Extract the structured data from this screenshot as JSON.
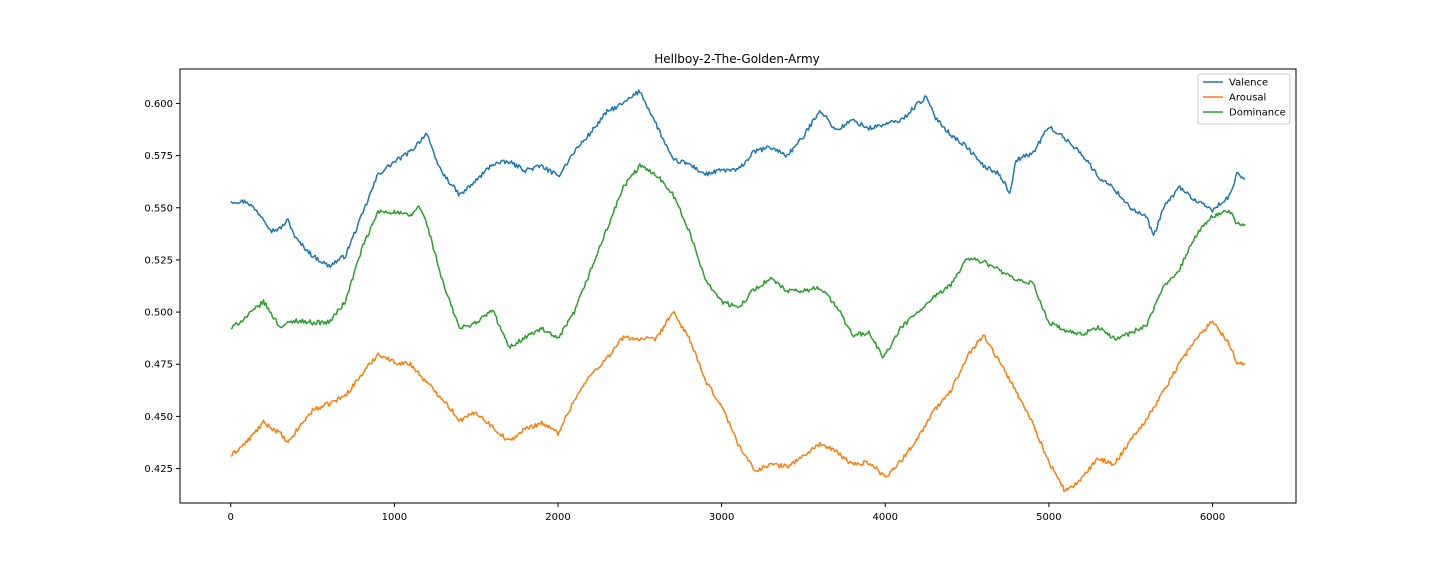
{
  "chart_data": {
    "type": "line",
    "title": "Hellboy-2-The-Golden-Army",
    "xlabel": "",
    "ylabel": "",
    "xlim": [
      -310,
      6510
    ],
    "ylim": [
      0.4085,
      0.6165
    ],
    "x_ticks": [
      0,
      1000,
      2000,
      3000,
      4000,
      5000,
      6000
    ],
    "x_tick_labels": [
      "0",
      "1000",
      "2000",
      "3000",
      "4000",
      "5000",
      "6000"
    ],
    "y_ticks": [
      0.425,
      0.45,
      0.475,
      0.5,
      0.525,
      0.55,
      0.575,
      0.6
    ],
    "y_tick_labels": [
      "0.425",
      "0.450",
      "0.475",
      "0.500",
      "0.525",
      "0.550",
      "0.575",
      "0.600"
    ],
    "grid": false,
    "legend_position": "top-right",
    "series": [
      {
        "name": "Valence",
        "color": "#1f77b4",
        "points": [
          [
            0,
            0.553
          ],
          [
            100,
            0.553
          ],
          [
            200,
            0.545
          ],
          [
            250,
            0.539
          ],
          [
            300,
            0.54
          ],
          [
            350,
            0.544
          ],
          [
            400,
            0.535
          ],
          [
            500,
            0.527
          ],
          [
            600,
            0.522
          ],
          [
            700,
            0.527
          ],
          [
            800,
            0.546
          ],
          [
            900,
            0.566
          ],
          [
            1000,
            0.572
          ],
          [
            1100,
            0.577
          ],
          [
            1200,
            0.586
          ],
          [
            1250,
            0.573
          ],
          [
            1300,
            0.566
          ],
          [
            1400,
            0.556
          ],
          [
            1500,
            0.563
          ],
          [
            1600,
            0.571
          ],
          [
            1700,
            0.572
          ],
          [
            1800,
            0.568
          ],
          [
            1900,
            0.57
          ],
          [
            2000,
            0.565
          ],
          [
            2100,
            0.577
          ],
          [
            2200,
            0.586
          ],
          [
            2300,
            0.596
          ],
          [
            2400,
            0.6
          ],
          [
            2500,
            0.606
          ],
          [
            2600,
            0.59
          ],
          [
            2700,
            0.573
          ],
          [
            2800,
            0.571
          ],
          [
            2900,
            0.566
          ],
          [
            3000,
            0.568
          ],
          [
            3100,
            0.568
          ],
          [
            3200,
            0.577
          ],
          [
            3300,
            0.579
          ],
          [
            3400,
            0.575
          ],
          [
            3500,
            0.584
          ],
          [
            3600,
            0.597
          ],
          [
            3700,
            0.587
          ],
          [
            3800,
            0.592
          ],
          [
            3900,
            0.588
          ],
          [
            4000,
            0.59
          ],
          [
            4100,
            0.592
          ],
          [
            4200,
            0.6
          ],
          [
            4250,
            0.603
          ],
          [
            4300,
            0.594
          ],
          [
            4400,
            0.585
          ],
          [
            4500,
            0.579
          ],
          [
            4600,
            0.57
          ],
          [
            4700,
            0.566
          ],
          [
            4760,
            0.557
          ],
          [
            4800,
            0.573
          ],
          [
            4900,
            0.576
          ],
          [
            5000,
            0.589
          ],
          [
            5100,
            0.583
          ],
          [
            5200,
            0.576
          ],
          [
            5300,
            0.565
          ],
          [
            5400,
            0.559
          ],
          [
            5500,
            0.55
          ],
          [
            5600,
            0.545
          ],
          [
            5640,
            0.536
          ],
          [
            5700,
            0.55
          ],
          [
            5800,
            0.56
          ],
          [
            5900,
            0.553
          ],
          [
            6000,
            0.549
          ],
          [
            6100,
            0.555
          ],
          [
            6150,
            0.566
          ],
          [
            6200,
            0.564
          ]
        ]
      },
      {
        "name": "Arousal",
        "color": "#ff7f0e",
        "points": [
          [
            0,
            0.431
          ],
          [
            100,
            0.438
          ],
          [
            200,
            0.447
          ],
          [
            300,
            0.442
          ],
          [
            350,
            0.437
          ],
          [
            400,
            0.443
          ],
          [
            500,
            0.453
          ],
          [
            600,
            0.456
          ],
          [
            700,
            0.46
          ],
          [
            800,
            0.47
          ],
          [
            900,
            0.48
          ],
          [
            1000,
            0.476
          ],
          [
            1100,
            0.475
          ],
          [
            1200,
            0.466
          ],
          [
            1300,
            0.458
          ],
          [
            1400,
            0.448
          ],
          [
            1500,
            0.452
          ],
          [
            1600,
            0.445
          ],
          [
            1700,
            0.438
          ],
          [
            1800,
            0.444
          ],
          [
            1900,
            0.447
          ],
          [
            2000,
            0.442
          ],
          [
            2100,
            0.458
          ],
          [
            2200,
            0.47
          ],
          [
            2300,
            0.478
          ],
          [
            2400,
            0.488
          ],
          [
            2500,
            0.487
          ],
          [
            2600,
            0.487
          ],
          [
            2700,
            0.5
          ],
          [
            2800,
            0.488
          ],
          [
            2900,
            0.467
          ],
          [
            3000,
            0.455
          ],
          [
            3100,
            0.437
          ],
          [
            3200,
            0.424
          ],
          [
            3300,
            0.427
          ],
          [
            3400,
            0.426
          ],
          [
            3500,
            0.431
          ],
          [
            3600,
            0.437
          ],
          [
            3700,
            0.433
          ],
          [
            3800,
            0.427
          ],
          [
            3900,
            0.428
          ],
          [
            4000,
            0.421
          ],
          [
            4100,
            0.429
          ],
          [
            4200,
            0.44
          ],
          [
            4300,
            0.453
          ],
          [
            4400,
            0.462
          ],
          [
            4500,
            0.479
          ],
          [
            4600,
            0.489
          ],
          [
            4700,
            0.476
          ],
          [
            4800,
            0.462
          ],
          [
            4900,
            0.447
          ],
          [
            5000,
            0.428
          ],
          [
            5100,
            0.414
          ],
          [
            5200,
            0.42
          ],
          [
            5300,
            0.43
          ],
          [
            5400,
            0.427
          ],
          [
            5500,
            0.439
          ],
          [
            5600,
            0.449
          ],
          [
            5700,
            0.462
          ],
          [
            5800,
            0.476
          ],
          [
            5900,
            0.487
          ],
          [
            6000,
            0.496
          ],
          [
            6100,
            0.485
          ],
          [
            6150,
            0.476
          ],
          [
            6200,
            0.475
          ]
        ]
      },
      {
        "name": "Dominance",
        "color": "#2ca02c",
        "points": [
          [
            0,
            0.492
          ],
          [
            100,
            0.498
          ],
          [
            200,
            0.505
          ],
          [
            300,
            0.493
          ],
          [
            400,
            0.496
          ],
          [
            500,
            0.495
          ],
          [
            600,
            0.495
          ],
          [
            700,
            0.505
          ],
          [
            800,
            0.53
          ],
          [
            900,
            0.548
          ],
          [
            1000,
            0.548
          ],
          [
            1100,
            0.546
          ],
          [
            1150,
            0.551
          ],
          [
            1200,
            0.542
          ],
          [
            1300,
            0.513
          ],
          [
            1400,
            0.492
          ],
          [
            1500,
            0.495
          ],
          [
            1600,
            0.501
          ],
          [
            1700,
            0.483
          ],
          [
            1800,
            0.488
          ],
          [
            1900,
            0.492
          ],
          [
            2000,
            0.487
          ],
          [
            2100,
            0.5
          ],
          [
            2200,
            0.52
          ],
          [
            2300,
            0.54
          ],
          [
            2400,
            0.56
          ],
          [
            2500,
            0.57
          ],
          [
            2600,
            0.566
          ],
          [
            2700,
            0.557
          ],
          [
            2800,
            0.539
          ],
          [
            2900,
            0.516
          ],
          [
            3000,
            0.505
          ],
          [
            3100,
            0.502
          ],
          [
            3200,
            0.511
          ],
          [
            3300,
            0.516
          ],
          [
            3400,
            0.51
          ],
          [
            3500,
            0.51
          ],
          [
            3600,
            0.512
          ],
          [
            3700,
            0.503
          ],
          [
            3800,
            0.489
          ],
          [
            3900,
            0.49
          ],
          [
            3990,
            0.478
          ],
          [
            4100,
            0.493
          ],
          [
            4200,
            0.5
          ],
          [
            4300,
            0.507
          ],
          [
            4400,
            0.513
          ],
          [
            4500,
            0.526
          ],
          [
            4600,
            0.524
          ],
          [
            4700,
            0.52
          ],
          [
            4800,
            0.515
          ],
          [
            4900,
            0.514
          ],
          [
            5000,
            0.495
          ],
          [
            5100,
            0.491
          ],
          [
            5200,
            0.489
          ],
          [
            5300,
            0.493
          ],
          [
            5400,
            0.487
          ],
          [
            5500,
            0.49
          ],
          [
            5600,
            0.494
          ],
          [
            5700,
            0.512
          ],
          [
            5800,
            0.521
          ],
          [
            5900,
            0.537
          ],
          [
            6000,
            0.546
          ],
          [
            6100,
            0.549
          ],
          [
            6150,
            0.542
          ],
          [
            6200,
            0.542
          ]
        ]
      }
    ]
  }
}
